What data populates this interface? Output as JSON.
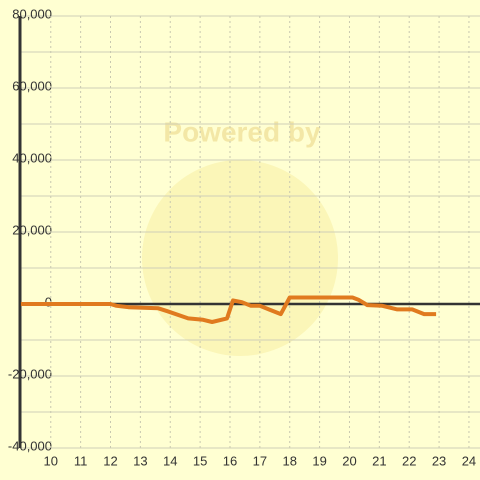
{
  "chart_data": {
    "type": "line",
    "watermark": "Powered by",
    "x": [
      9,
      12,
      12.2,
      12.6,
      13.6,
      13.9,
      14.6,
      15.1,
      15.4,
      15.9,
      16.1,
      16.4,
      16.7,
      17.0,
      17.3,
      17.7,
      18.0,
      20.1,
      20.3,
      20.6,
      21.1,
      21.6,
      22.1,
      22.5,
      22.9
    ],
    "series": [
      {
        "color": "#e07a1f",
        "values": [
          0,
          0,
          -500,
          -900,
          -1200,
          -2000,
          -4000,
          -4400,
          -5000,
          -4000,
          1000,
          500,
          -500,
          -500,
          -1500,
          -2800,
          1800,
          1800,
          1200,
          -300,
          -500,
          -1500,
          -1500,
          -2800,
          -2800
        ]
      }
    ],
    "xlim": [
      8.97,
      24.37
    ],
    "xticks": [
      10,
      11,
      12,
      13,
      14,
      15,
      16,
      17,
      18,
      19,
      20,
      21,
      22,
      23,
      24
    ],
    "ylim": [
      -40000,
      80000
    ],
    "yticks": [
      {
        "value": -40000,
        "label": "-40,000"
      },
      {
        "value": -20000,
        "label": "-20,000"
      },
      0,
      {
        "value": 20000,
        "label": "20,000"
      },
      {
        "value": 40000,
        "label": "40,000"
      },
      {
        "value": 60000,
        "label": "60,000"
      },
      {
        "value": 80000,
        "label": "80,000"
      }
    ],
    "yminorticks": [
      -30000,
      -10000,
      10000,
      30000,
      50000,
      70000
    ],
    "grid": true,
    "background": "#ffffd2"
  }
}
